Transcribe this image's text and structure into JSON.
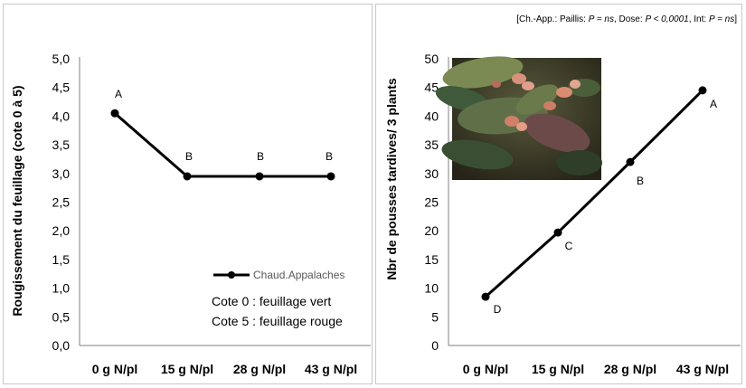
{
  "chart_data": [
    {
      "type": "line",
      "ylabel": "Rougissement du feuillage (cote 0 à 5)",
      "xlabel": "",
      "categories": [
        "0 g N/pl",
        "15 g N/pl",
        "28 g N/pl",
        "43 g N/pl"
      ],
      "series": [
        {
          "name": "Chaud.Appalaches",
          "values": [
            4.05,
            2.95,
            2.95,
            2.95
          ],
          "letters": [
            "A",
            "B",
            "B",
            "B"
          ]
        }
      ],
      "ylim": [
        0,
        5
      ],
      "yticks": [
        "0,0",
        "0,5",
        "1,0",
        "1,5",
        "2,0",
        "2,5",
        "3,0",
        "3,5",
        "4,0",
        "4,5",
        "5,0"
      ],
      "grid": false,
      "legend": "bottom-right",
      "annotations": [
        "Cote 0 : feuillage vert",
        "Cote 5 : feuillage rouge"
      ]
    },
    {
      "type": "line",
      "ylabel": "Nbr de pousses tardives/ 3 plants",
      "xlabel": "",
      "categories": [
        "0 g N/pl",
        "15 g N/pl",
        "28 g N/pl",
        "43 g N/pl"
      ],
      "series": [
        {
          "values": [
            8.5,
            19.7,
            32.0,
            44.5
          ],
          "letters": [
            "D",
            "C",
            "B",
            "A"
          ]
        }
      ],
      "ylim": [
        0,
        50
      ],
      "yticks": [
        "0",
        "5",
        "10",
        "15",
        "20",
        "25",
        "30",
        "35",
        "40",
        "45",
        "50"
      ],
      "grid": false,
      "stats": {
        "prefix": "[Ch.-App.:  Paillis: ",
        "paillis": "P = ns",
        "dose_sep": ", Dose: ",
        "dose": "P < 0,0001",
        "int_sep": ", Int: ",
        "int": "P = ns",
        "suffix": "]"
      },
      "photo": "leaf-photo"
    }
  ]
}
